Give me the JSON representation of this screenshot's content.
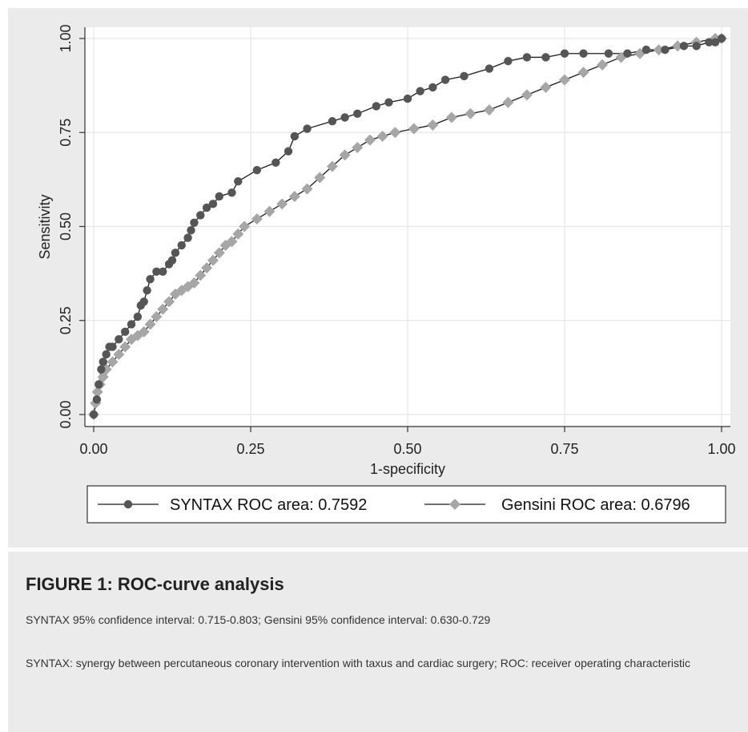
{
  "chart_data": {
    "type": "line",
    "xlabel": "1-specificity",
    "ylabel": "Sensitivity",
    "xlim": [
      0,
      1
    ],
    "ylim": [
      0,
      1
    ],
    "xticks": [
      "0.00",
      "0.25",
      "0.50",
      "0.75",
      "1.00"
    ],
    "yticks": [
      "0.00",
      "0.25",
      "0.50",
      "0.75",
      "1.00"
    ],
    "grid": true,
    "legend_position": "bottom",
    "series": [
      {
        "name": "SYNTAX ROC area: 0.7592",
        "color": "#555555",
        "marker": "circle",
        "x": [
          0.0,
          0.005,
          0.008,
          0.012,
          0.015,
          0.02,
          0.025,
          0.03,
          0.04,
          0.05,
          0.06,
          0.07,
          0.075,
          0.08,
          0.085,
          0.09,
          0.1,
          0.11,
          0.12,
          0.125,
          0.13,
          0.14,
          0.15,
          0.155,
          0.16,
          0.17,
          0.18,
          0.19,
          0.2,
          0.22,
          0.23,
          0.26,
          0.29,
          0.31,
          0.32,
          0.34,
          0.38,
          0.4,
          0.42,
          0.45,
          0.47,
          0.5,
          0.52,
          0.54,
          0.56,
          0.59,
          0.63,
          0.66,
          0.69,
          0.72,
          0.75,
          0.78,
          0.82,
          0.85,
          0.88,
          0.91,
          0.94,
          0.96,
          0.98,
          0.99,
          1.0
        ],
        "y": [
          0.0,
          0.04,
          0.08,
          0.12,
          0.14,
          0.16,
          0.18,
          0.18,
          0.2,
          0.22,
          0.24,
          0.26,
          0.29,
          0.3,
          0.33,
          0.36,
          0.38,
          0.38,
          0.4,
          0.41,
          0.43,
          0.45,
          0.47,
          0.49,
          0.51,
          0.53,
          0.55,
          0.56,
          0.58,
          0.59,
          0.62,
          0.65,
          0.67,
          0.7,
          0.74,
          0.76,
          0.78,
          0.79,
          0.8,
          0.82,
          0.83,
          0.84,
          0.86,
          0.87,
          0.89,
          0.9,
          0.92,
          0.94,
          0.95,
          0.95,
          0.96,
          0.96,
          0.96,
          0.96,
          0.97,
          0.97,
          0.98,
          0.98,
          0.99,
          0.99,
          1.0
        ]
      },
      {
        "name": "Gensini ROC area: 0.6796",
        "color": "#a6a6a6",
        "marker": "diamond",
        "x": [
          0.0,
          0.003,
          0.006,
          0.01,
          0.015,
          0.02,
          0.03,
          0.04,
          0.05,
          0.06,
          0.07,
          0.08,
          0.09,
          0.1,
          0.11,
          0.12,
          0.13,
          0.14,
          0.15,
          0.16,
          0.17,
          0.18,
          0.19,
          0.2,
          0.21,
          0.22,
          0.23,
          0.24,
          0.26,
          0.28,
          0.3,
          0.32,
          0.34,
          0.36,
          0.38,
          0.4,
          0.42,
          0.44,
          0.46,
          0.48,
          0.51,
          0.54,
          0.57,
          0.6,
          0.63,
          0.66,
          0.69,
          0.72,
          0.75,
          0.78,
          0.81,
          0.84,
          0.87,
          0.9,
          0.93,
          0.96,
          0.99,
          1.0
        ],
        "y": [
          0.0,
          0.03,
          0.06,
          0.08,
          0.1,
          0.12,
          0.14,
          0.16,
          0.18,
          0.2,
          0.21,
          0.22,
          0.24,
          0.26,
          0.28,
          0.3,
          0.32,
          0.33,
          0.34,
          0.35,
          0.37,
          0.39,
          0.41,
          0.43,
          0.45,
          0.46,
          0.48,
          0.5,
          0.52,
          0.54,
          0.56,
          0.58,
          0.6,
          0.63,
          0.66,
          0.69,
          0.71,
          0.73,
          0.74,
          0.75,
          0.76,
          0.77,
          0.79,
          0.8,
          0.81,
          0.83,
          0.85,
          0.87,
          0.89,
          0.91,
          0.93,
          0.95,
          0.96,
          0.97,
          0.98,
          0.99,
          1.0,
          1.0
        ]
      }
    ]
  },
  "caption": {
    "title": "FIGURE 1: ROC-curve analysis",
    "line1": "SYNTAX 95% confidence interval: 0.715-0.803; Gensini 95% confidence interval: 0.630-0.729",
    "line2": "SYNTAX: synergy between percutaneous coronary intervention with taxus and cardiac surgery; ROC: receiver operating characteristic"
  }
}
